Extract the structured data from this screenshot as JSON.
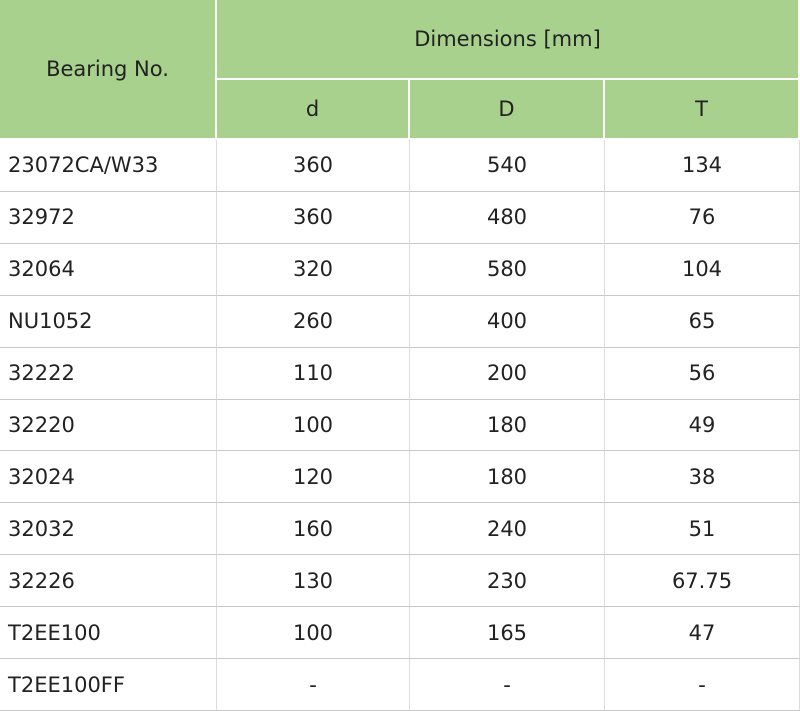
{
  "table": {
    "header": {
      "bearing": "Bearing No.",
      "dimensions": "Dimensions [mm]",
      "columns": [
        "d",
        "D",
        "T"
      ]
    },
    "rows": [
      [
        "23072CA/W33",
        "360",
        "540",
        "134"
      ],
      [
        "32972",
        "360",
        "480",
        "76"
      ],
      [
        "32064",
        "320",
        "580",
        "104"
      ],
      [
        "NU1052",
        "260",
        "400",
        "65"
      ],
      [
        "32222",
        "110",
        "200",
        "56"
      ],
      [
        "32220",
        "100",
        "180",
        "49"
      ],
      [
        "32024",
        "120",
        "180",
        "38"
      ],
      [
        "32032",
        "160",
        "240",
        "51"
      ],
      [
        "32226",
        "130",
        "230",
        "67.75"
      ],
      [
        "T2EE100",
        "100",
        "165",
        "47"
      ],
      [
        "T2EE100FF",
        "-",
        "-",
        "-"
      ]
    ]
  }
}
